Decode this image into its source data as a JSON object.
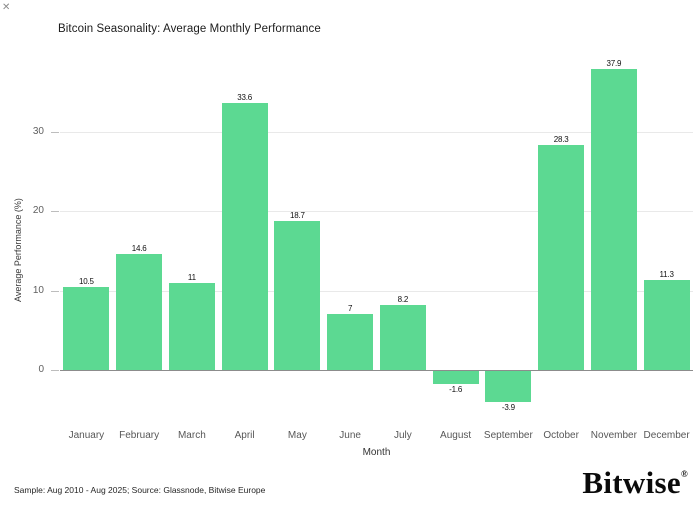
{
  "page": {
    "close_icon": "✕",
    "footer": "Sample: Aug 2010 - Aug 2025; Source: Glassnode, Bitwise Europe",
    "logo_text": "Bitwise",
    "logo_registered": "®"
  },
  "chart_data": {
    "type": "bar",
    "title": "Bitcoin Seasonality: Average Monthly Performance",
    "xlabel": "Month",
    "ylabel": "Average Performance (%)",
    "categories": [
      "January",
      "February",
      "March",
      "April",
      "May",
      "June",
      "July",
      "August",
      "September",
      "October",
      "November",
      "December"
    ],
    "values": [
      10.5,
      14.6,
      11,
      33.6,
      18.7,
      7,
      8.2,
      -1.6,
      -3.9,
      28.3,
      37.9,
      11.3
    ],
    "value_labels": [
      "10.5",
      "14.6",
      "11",
      "33.6",
      "18.7",
      "7",
      "8.2",
      "-1.6",
      "-3.9",
      "28.3",
      "37.9",
      "11.3"
    ],
    "yticks": [
      0,
      10,
      20,
      30
    ],
    "ylim": [
      -5.5,
      39.6
    ],
    "grid": true,
    "legend_position": "none",
    "bar_color": "#5cd992",
    "grid_color": "#e9e9e9",
    "zero_line_color": "#8c8c8c"
  }
}
